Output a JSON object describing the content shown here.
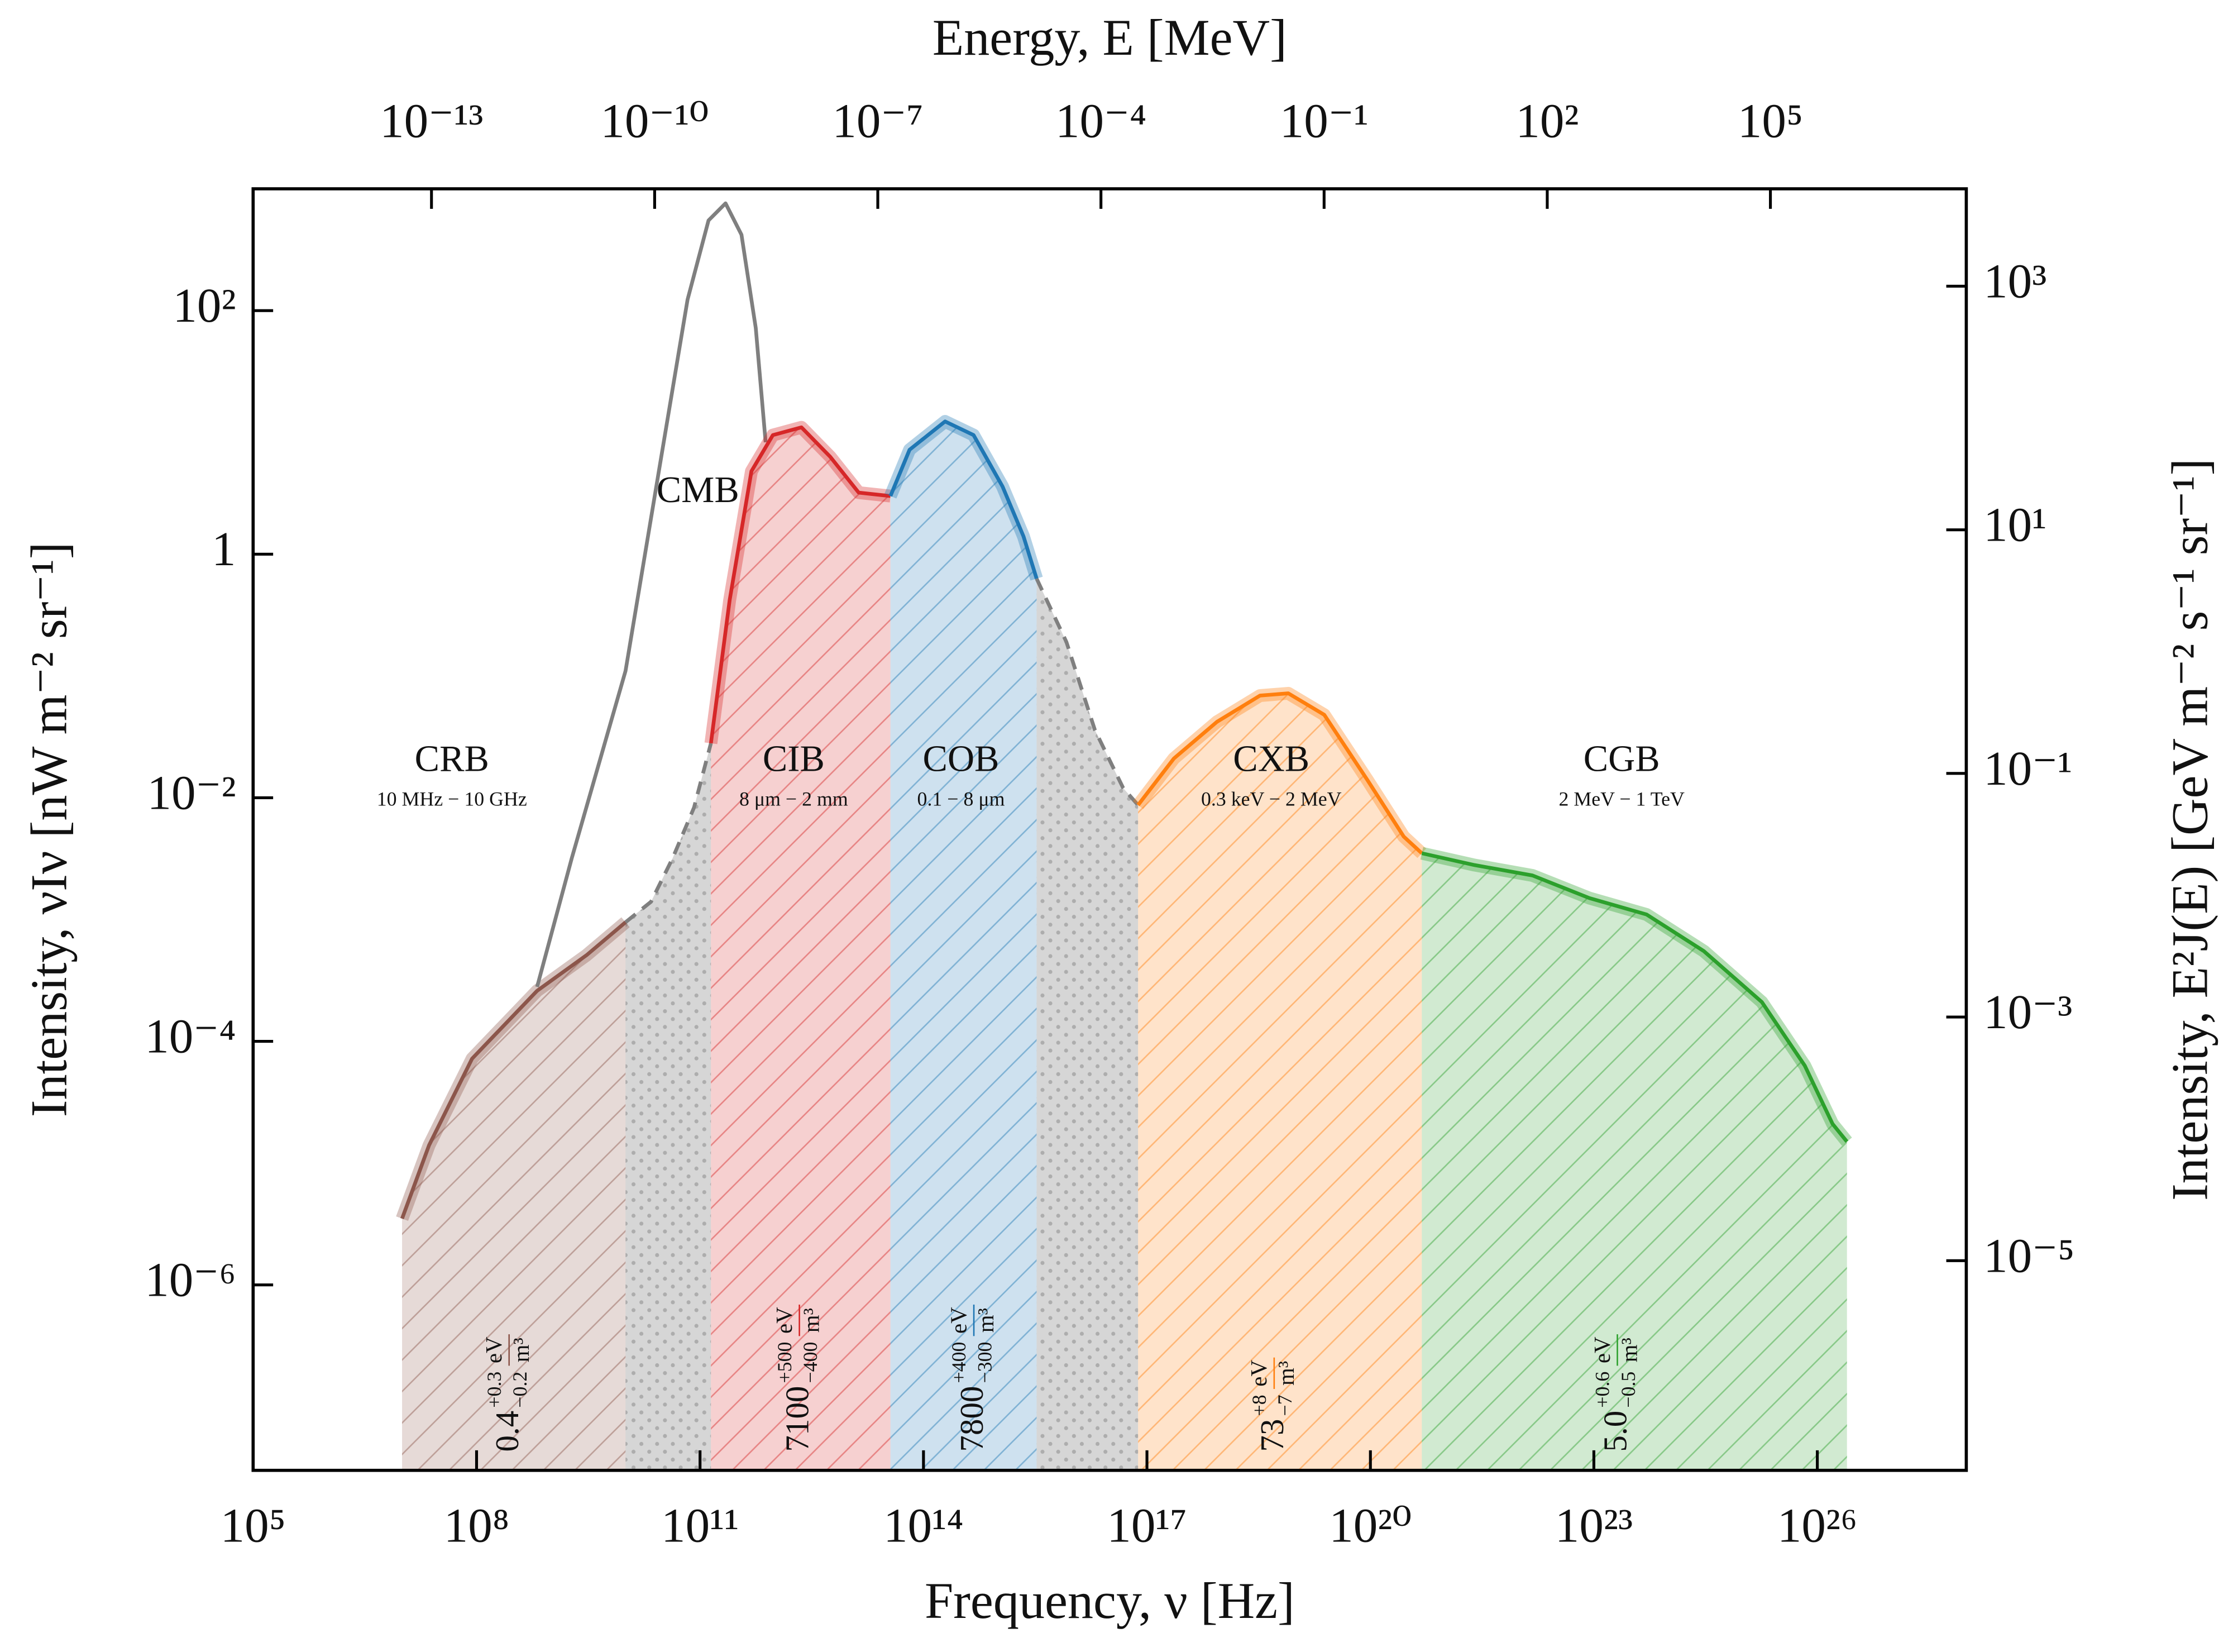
{
  "chart_data": {
    "type": "line",
    "log_scale": true,
    "x_label": "Frequency, ν [Hz]",
    "y_label": "Intensity, νIν [nW m⁻² sr⁻¹]",
    "x2_label": "Energy, E [MeV]",
    "y2_label": "Intensity, E²J(E) [GeV m⁻² s⁻¹ sr⁻¹]",
    "xlim": [
      100000.0,
      1e+28
    ],
    "ylim": [
      3e-08,
      1000
    ],
    "x2lim": [
      4e-16,
      43000000.0
    ],
    "y2lim": [
      1.9e-07,
      6300
    ],
    "xticks": [
      {
        "value": 100000.0,
        "label": "10⁵"
      },
      {
        "value": 100000000.0,
        "label": "10⁸"
      },
      {
        "value": 100000000000.0,
        "label": "10¹¹"
      },
      {
        "value": 100000000000000.0,
        "label": "10¹⁴"
      },
      {
        "value": 1e+17,
        "label": "10¹⁷"
      },
      {
        "value": 1e+20,
        "label": "10²⁰"
      },
      {
        "value": 1e+23,
        "label": "10²³"
      },
      {
        "value": 1e+26,
        "label": "10²⁶"
      }
    ],
    "yticks": [
      {
        "value": 1e-06,
        "label": "10⁻⁶"
      },
      {
        "value": 0.0001,
        "label": "10⁻⁴"
      },
      {
        "value": 0.01,
        "label": "10⁻²"
      },
      1,
      {
        "value": 100,
        "label": "10²"
      }
    ],
    "x2ticks": [
      {
        "value": 1e-13,
        "label": "10⁻¹³"
      },
      {
        "value": 1e-10,
        "label": "10⁻¹⁰"
      },
      {
        "value": 1e-07,
        "label": "10⁻⁷"
      },
      {
        "value": 0.0001,
        "label": "10⁻⁴"
      },
      {
        "value": 0.1,
        "label": "10⁻¹"
      },
      {
        "value": 100,
        "label": "10²"
      },
      {
        "value": 100000.0,
        "label": "10⁵"
      }
    ],
    "y2ticks": [
      {
        "value": 1e-05,
        "label": "10⁻⁵"
      },
      {
        "value": 0.001,
        "label": "10⁻³"
      },
      {
        "value": 0.1,
        "label": "10⁻¹"
      },
      {
        "value": 10,
        "label": "10¹"
      },
      {
        "value": 1000,
        "label": "10³"
      }
    ],
    "series": [
      {
        "name": "CRB",
        "range": "10 MHz − 10 GHz",
        "color": "#8c564b",
        "fill": true,
        "x": [
          10000000.0,
          23000000.0,
          87000000.0,
          650000000.0,
          3000000000.0,
          10000000000.0
        ],
        "values": [
          3.5e-06,
          1.4e-05,
          7.2e-05,
          0.00026,
          0.00051,
          0.00095
        ],
        "energy_density": {
          "value": 0.4,
          "plus": {
            "value": 0.3,
            "label": "+0.3"
          },
          "minus": {
            "value": -0.2,
            "label": "−0.2"
          },
          "unit": "eV",
          "per": "m³"
        }
      },
      {
        "name": "CMB",
        "color": "#7f7f7f",
        "fill": false,
        "x": [
          650000000.0,
          1900000000.0,
          10000000000.0,
          28000000000.0,
          68000000000.0,
          130000000000.0,
          220000000000.0,
          360000000000.0,
          560000000000.0,
          760000000000.0
        ],
        "values": [
          0.00028,
          0.0032,
          0.11,
          4.8,
          123,
          550,
          760,
          420,
          72,
          8.3
        ]
      },
      {
        "name": "CIB",
        "range": "8 μm − 2 mm",
        "color": "#d62728",
        "fill": true,
        "x": [
          140000000000.0,
          250000000000.0,
          490000000000.0,
          950000000000.0,
          2300000000000.0,
          5600000000000.0,
          13500000000000.0,
          36000000000000.0
        ],
        "values": [
          0.028,
          0.42,
          4.8,
          9.5,
          11,
          6.3,
          3.2,
          3.0
        ],
        "energy_density": {
          "value": 7100,
          "plus": {
            "value": 500,
            "label": "+500"
          },
          "minus": {
            "value": -400,
            "label": "−400"
          },
          "unit": "eV",
          "per": "m³"
        }
      },
      {
        "name": "COB",
        "range": "0.1 − 8 μm",
        "color": "#1f77b4",
        "fill": true,
        "x": [
          36000000000000.0,
          65000000000000.0,
          195000000000000.0,
          470000000000000.0,
          1150000000000000.0,
          2200000000000000.0,
          3300000000000000.0
        ],
        "values": [
          3.0,
          7.2,
          12.3,
          9.5,
          3.6,
          1.4,
          0.63
        ],
        "energy_density": {
          "value": 7800,
          "plus": {
            "value": 400,
            "label": "+400"
          },
          "minus": {
            "value": -300,
            "label": "−300"
          },
          "unit": "eV",
          "per": "m³"
        }
      },
      {
        "name": "CXB",
        "range": "0.3 keV − 2 MeV",
        "color": "#ff7f0e",
        "fill": true,
        "x": [
          7.6e+16,
          2.3e+17,
          8.7e+17,
          3.3e+18,
          7.9e+18,
          2.4e+19,
          9.1e+19,
          2.8e+20,
          4.9e+20
        ],
        "values": [
          0.0087,
          0.021,
          0.042,
          0.069,
          0.072,
          0.048,
          0.014,
          0.0048,
          0.0035
        ],
        "energy_density": {
          "value": 73,
          "plus": {
            "value": 8,
            "label": "+8"
          },
          "minus": {
            "value": -7,
            "label": "−7"
          },
          "unit": "eV",
          "per": "m³"
        }
      },
      {
        "name": "CGB",
        "range": "2 MeV − 1 TeV",
        "color": "#2ca02c",
        "fill": true,
        "x": [
          4.9e+20,
          2.5e+21,
          1.5e+22,
          8.7e+22,
          5.1e+23,
          3e+24,
          1.8e+25,
          6.8e+25,
          1.6e+26,
          2.5e+26
        ],
        "values": [
          0.0035,
          0.0028,
          0.0023,
          0.0015,
          0.0011,
          0.00055,
          0.00021,
          6.3e-05,
          2.1e-05,
          1.5e-05
        ],
        "energy_density": {
          "value": {
            "value": 5,
            "label": "5.0"
          },
          "plus": {
            "value": 0.6,
            "label": "+0.6"
          },
          "minus": {
            "value": -0.5,
            "label": "−0.5"
          },
          "unit": "eV",
          "per": "m³"
        }
      }
    ],
    "gap_color": "#7f7f7f",
    "gap_style": "dashed",
    "gaps": [
      {
        "x": [
          10000000000.0,
          22000000000.0,
          43000000000.0,
          83000000000.0,
          140000000000.0
        ],
        "values": [
          0.00095,
          0.0014,
          0.0032,
          0.0083,
          0.028
        ]
      },
      {
        "x": [
          3300000000000000.0,
          8300000000000000.0,
          2e+16,
          4.8e+16,
          7.6e+16
        ],
        "values": [
          0.63,
          0.19,
          0.036,
          0.012,
          0.0087
        ]
      }
    ]
  }
}
